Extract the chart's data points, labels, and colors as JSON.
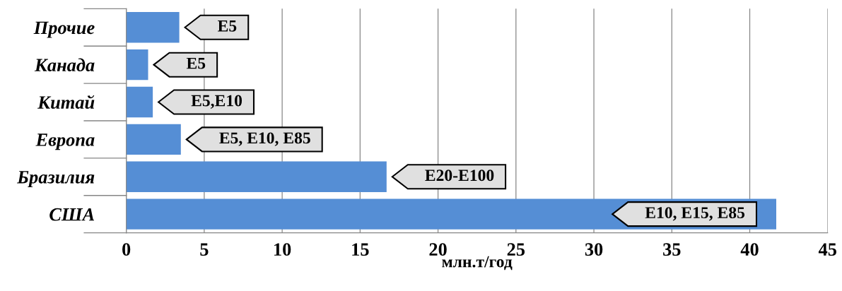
{
  "chart_data": {
    "type": "bar",
    "orientation": "horizontal",
    "categories": [
      "Прочие",
      "Канада",
      "Китай",
      "Европа",
      "Бразилия",
      "США"
    ],
    "values": [
      3.4,
      1.4,
      1.7,
      3.5,
      16.7,
      41.7
    ],
    "color": "#558ed5",
    "xlim": [
      0,
      45
    ],
    "xticks": [
      0,
      5,
      10,
      15,
      20,
      25,
      30,
      35,
      40,
      45
    ],
    "xlabel": "млн.т/год",
    "grid": "x",
    "annotations": [
      "E5",
      "E5",
      "E5,E10",
      "E5, E10, E85",
      "E20-E100",
      "E10, E15, E85"
    ]
  }
}
